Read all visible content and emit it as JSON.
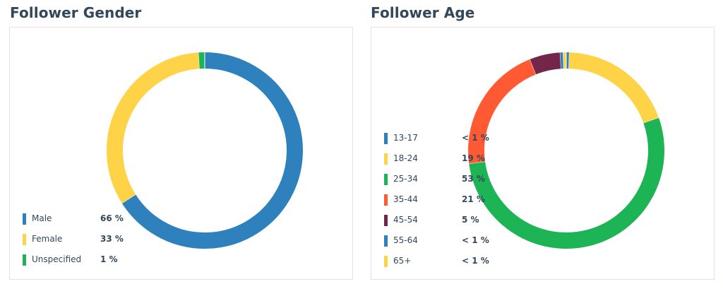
{
  "gender": {
    "title": "Follower Gender",
    "chart_data": {
      "type": "pie",
      "title": "Follower Gender",
      "categories": [
        "Male",
        "Female",
        "Unspecified"
      ],
      "values": [
        66,
        33,
        1
      ],
      "value_labels": [
        "66 %",
        "33 %",
        "1 %"
      ],
      "colors": [
        "#2e81bd",
        "#ffd348",
        "#1db455"
      ],
      "legend_position": "bottom-left"
    }
  },
  "age": {
    "title": "Follower Age",
    "chart_data": {
      "type": "pie",
      "title": "Follower Age",
      "categories": [
        "13-17",
        "18-24",
        "25-34",
        "35-44",
        "45-54",
        "55-64",
        "65+"
      ],
      "values": [
        0.5,
        19,
        53,
        21,
        5,
        0.5,
        0.5
      ],
      "value_labels": [
        "< 1 %",
        "19 %",
        "53 %",
        "21 %",
        "5 %",
        "< 1 %",
        "< 1 %"
      ],
      "colors": [
        "#2e81bd",
        "#ffd348",
        "#1db455",
        "#ff5a34",
        "#74264a",
        "#2e81bd",
        "#ffd348"
      ],
      "legend_position": "left"
    }
  }
}
